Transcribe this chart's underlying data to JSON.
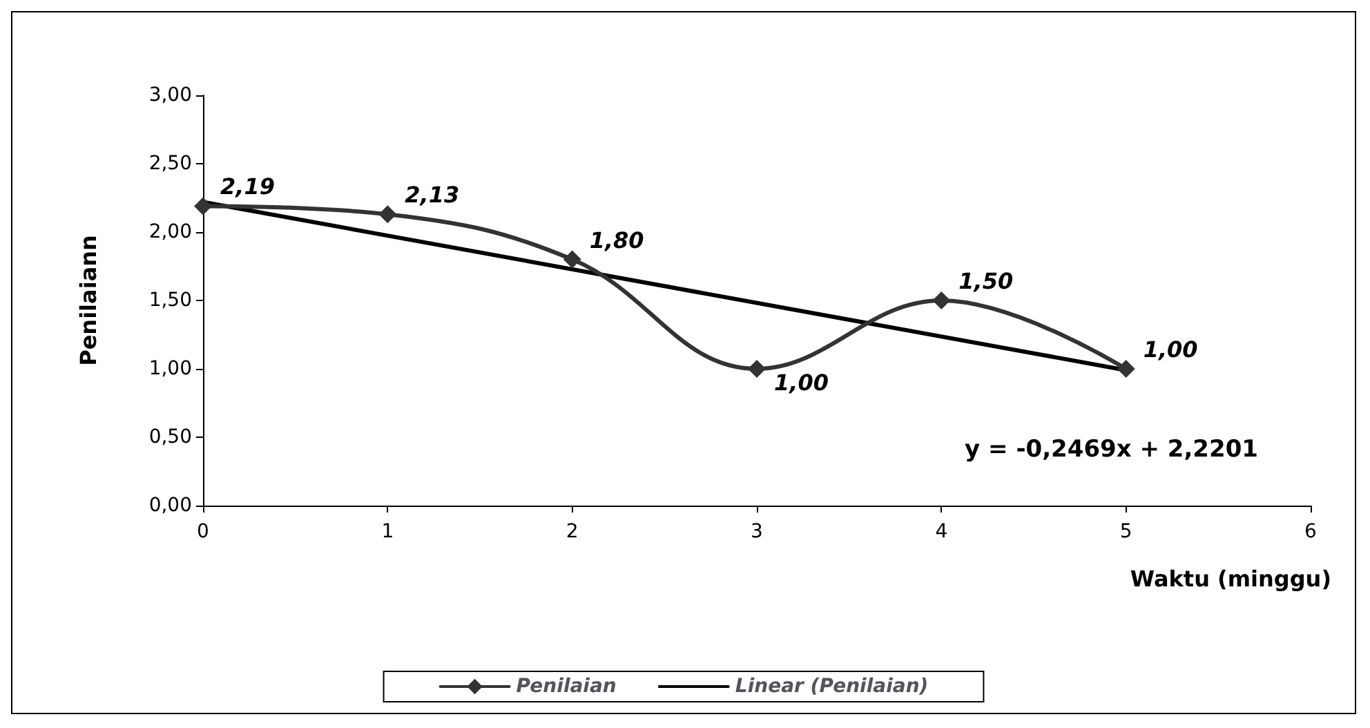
{
  "chart_data": {
    "type": "line",
    "xlabel": "Waktu (minggu)",
    "ylabel": "Penilaiann",
    "x": [
      0,
      1,
      2,
      3,
      4,
      5
    ],
    "series": [
      {
        "name": "Penilaian",
        "color": "#333333",
        "values": [
          2.19,
          2.13,
          1.8,
          1.0,
          1.5,
          1.0
        ],
        "value_labels": [
          "2,19",
          "2,13",
          "1,80",
          "1,00",
          "1,50",
          "1,00"
        ],
        "marker": "diamond"
      },
      {
        "name": "Linear (Penilaian)",
        "type": "line",
        "color": "#000000",
        "x": [
          0,
          5
        ],
        "values": [
          2.22,
          0.99
        ],
        "marker": "none"
      }
    ],
    "xlim": [
      0,
      6
    ],
    "xticks": [
      0,
      1,
      2,
      3,
      4,
      5,
      6
    ],
    "ylim": [
      0,
      3
    ],
    "yticks": [
      {
        "value": 0,
        "label": "0,00"
      },
      {
        "value": 0.5,
        "label": "0,50"
      },
      {
        "value": 1,
        "label": "1,00"
      },
      {
        "value": 1.5,
        "label": "1,50"
      },
      {
        "value": 2,
        "label": "2,00"
      },
      {
        "value": 2.5,
        "label": "2,50"
      },
      {
        "value": 3,
        "label": "3,00"
      }
    ],
    "annotations": [
      "y = -0,2469x + 2,2201"
    ],
    "grid": false,
    "legend": "bottom"
  }
}
